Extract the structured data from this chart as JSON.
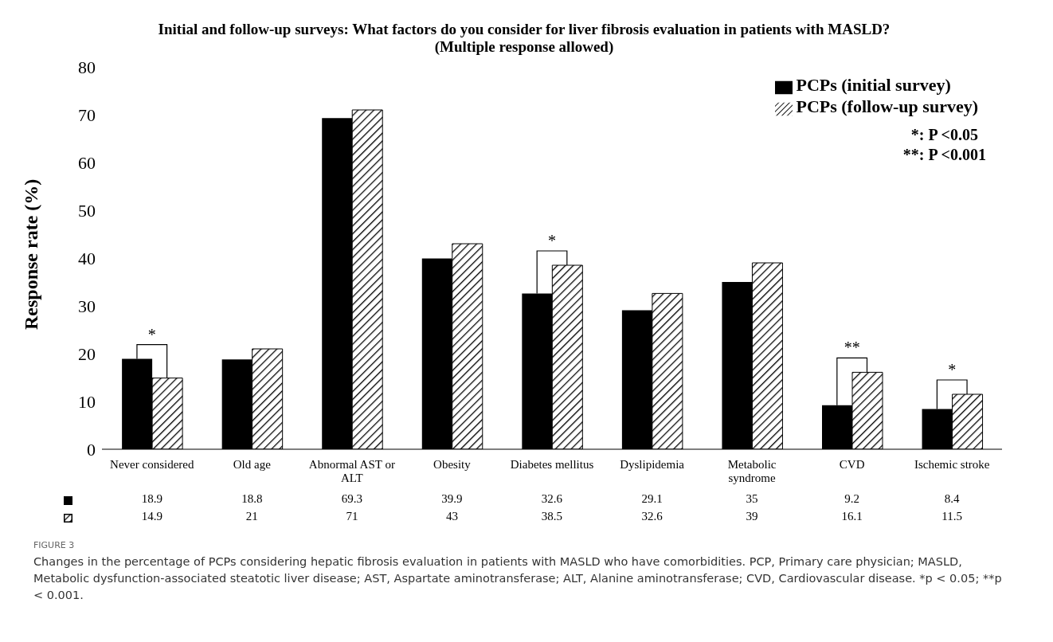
{
  "chart_data": {
    "type": "bar",
    "title": "Initial and follow-up surveys: What factors do you consider for liver fibrosis evaluation in patients with MASLD? (Multiple response allowed)",
    "ylabel": "Response rate (%)",
    "categories": [
      "Never considered",
      "Old age",
      "Abnormal AST or ALT",
      "Obesity",
      "Diabetes mellitus",
      "Dyslipidemia",
      "Metabolic syndrome",
      "CVD",
      "Ischemic stroke"
    ],
    "series": [
      {
        "name": "PCPs (initial survey)",
        "color": "#000000",
        "values": [
          18.9,
          18.8,
          69.3,
          39.9,
          32.6,
          29.1,
          35,
          9.2,
          8.4
        ]
      },
      {
        "name": "PCPs (follow-up survey)",
        "color": "#000000",
        "values": [
          14.9,
          21,
          71,
          43,
          38.5,
          32.6,
          39,
          16.1,
          11.5
        ]
      }
    ],
    "ylim": [
      0,
      80
    ],
    "yticks": [
      0,
      10,
      20,
      30,
      40,
      50,
      60,
      70,
      80
    ],
    "grid": false,
    "legend": "top right",
    "data_labels": true,
    "annotations": [
      {
        "text": "*",
        "x": "Never considered",
        "y": 18.9
      },
      {
        "text": "*",
        "x": "Diabetes mellitus",
        "y": 38.5
      },
      {
        "text": "**",
        "x": "CVD",
        "y": 16.1
      },
      {
        "text": "*",
        "x": "Ischemic stroke",
        "y": 11.5
      },
      "*: P <0.05",
      "**: P <0.001",
      "FIGURE 3",
      "Changes in the percentage of PCPs considering hepatic fibrosis evaluation in patients with MASLD who have comorbidities. PCP, Primary care physician; MASLD, Metabolic dysfunction-associated steatotic liver disease; AST, Aspartate aminotransferase; ALT, Alanine aminotransferase; CVD, Cardiovascular disease. *p < 0.05; **p < 0.001."
    ]
  }
}
